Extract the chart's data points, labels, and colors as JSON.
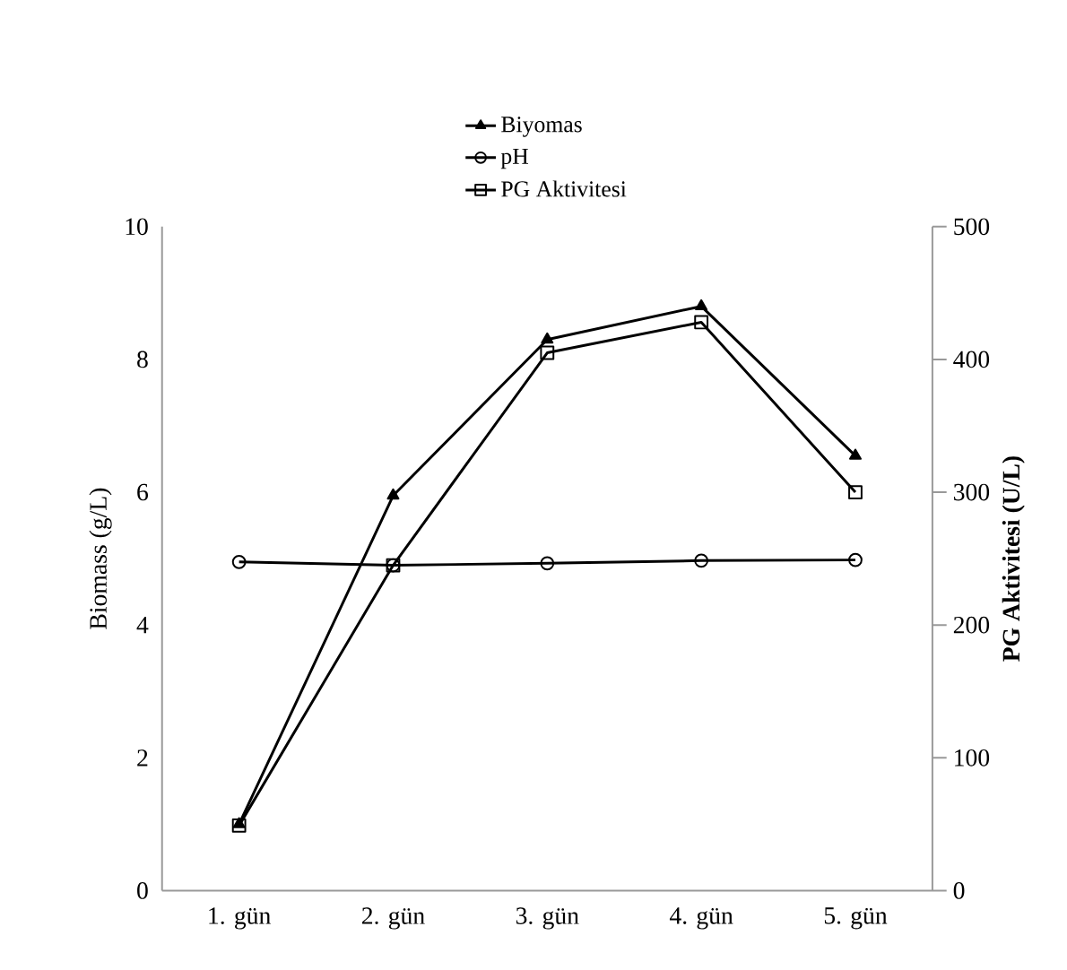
{
  "chart_data": {
    "type": "line",
    "categories": [
      "1. gün",
      "2. gün",
      "3. gün",
      "4. gün",
      "5. gün"
    ],
    "ylabel": "Biomass (g/L)",
    "y2label": "PG Aktivitesi  (U/L)",
    "ylim": [
      0,
      10
    ],
    "yticks": [
      0,
      2,
      4,
      6,
      8,
      10
    ],
    "y2lim": [
      0,
      500
    ],
    "y2ticks": [
      0,
      100,
      200,
      300,
      400,
      500
    ],
    "legend": "top",
    "grid": false,
    "line_style": "solid",
    "series": [
      {
        "name": "Biyomas",
        "color": "#000000",
        "marker": "triangle",
        "values": [
          1.0,
          5.95,
          8.3,
          8.8,
          6.55
        ]
      },
      {
        "name": "pH",
        "color": "#000000",
        "marker": "circle",
        "values": [
          4.95,
          4.9,
          4.93,
          4.97,
          4.98
        ]
      },
      {
        "name": "PG Aktivitesi",
        "color": "#000000",
        "marker": "square",
        "axis": "y2",
        "values": [
          49,
          245,
          405,
          428,
          300
        ]
      }
    ]
  }
}
